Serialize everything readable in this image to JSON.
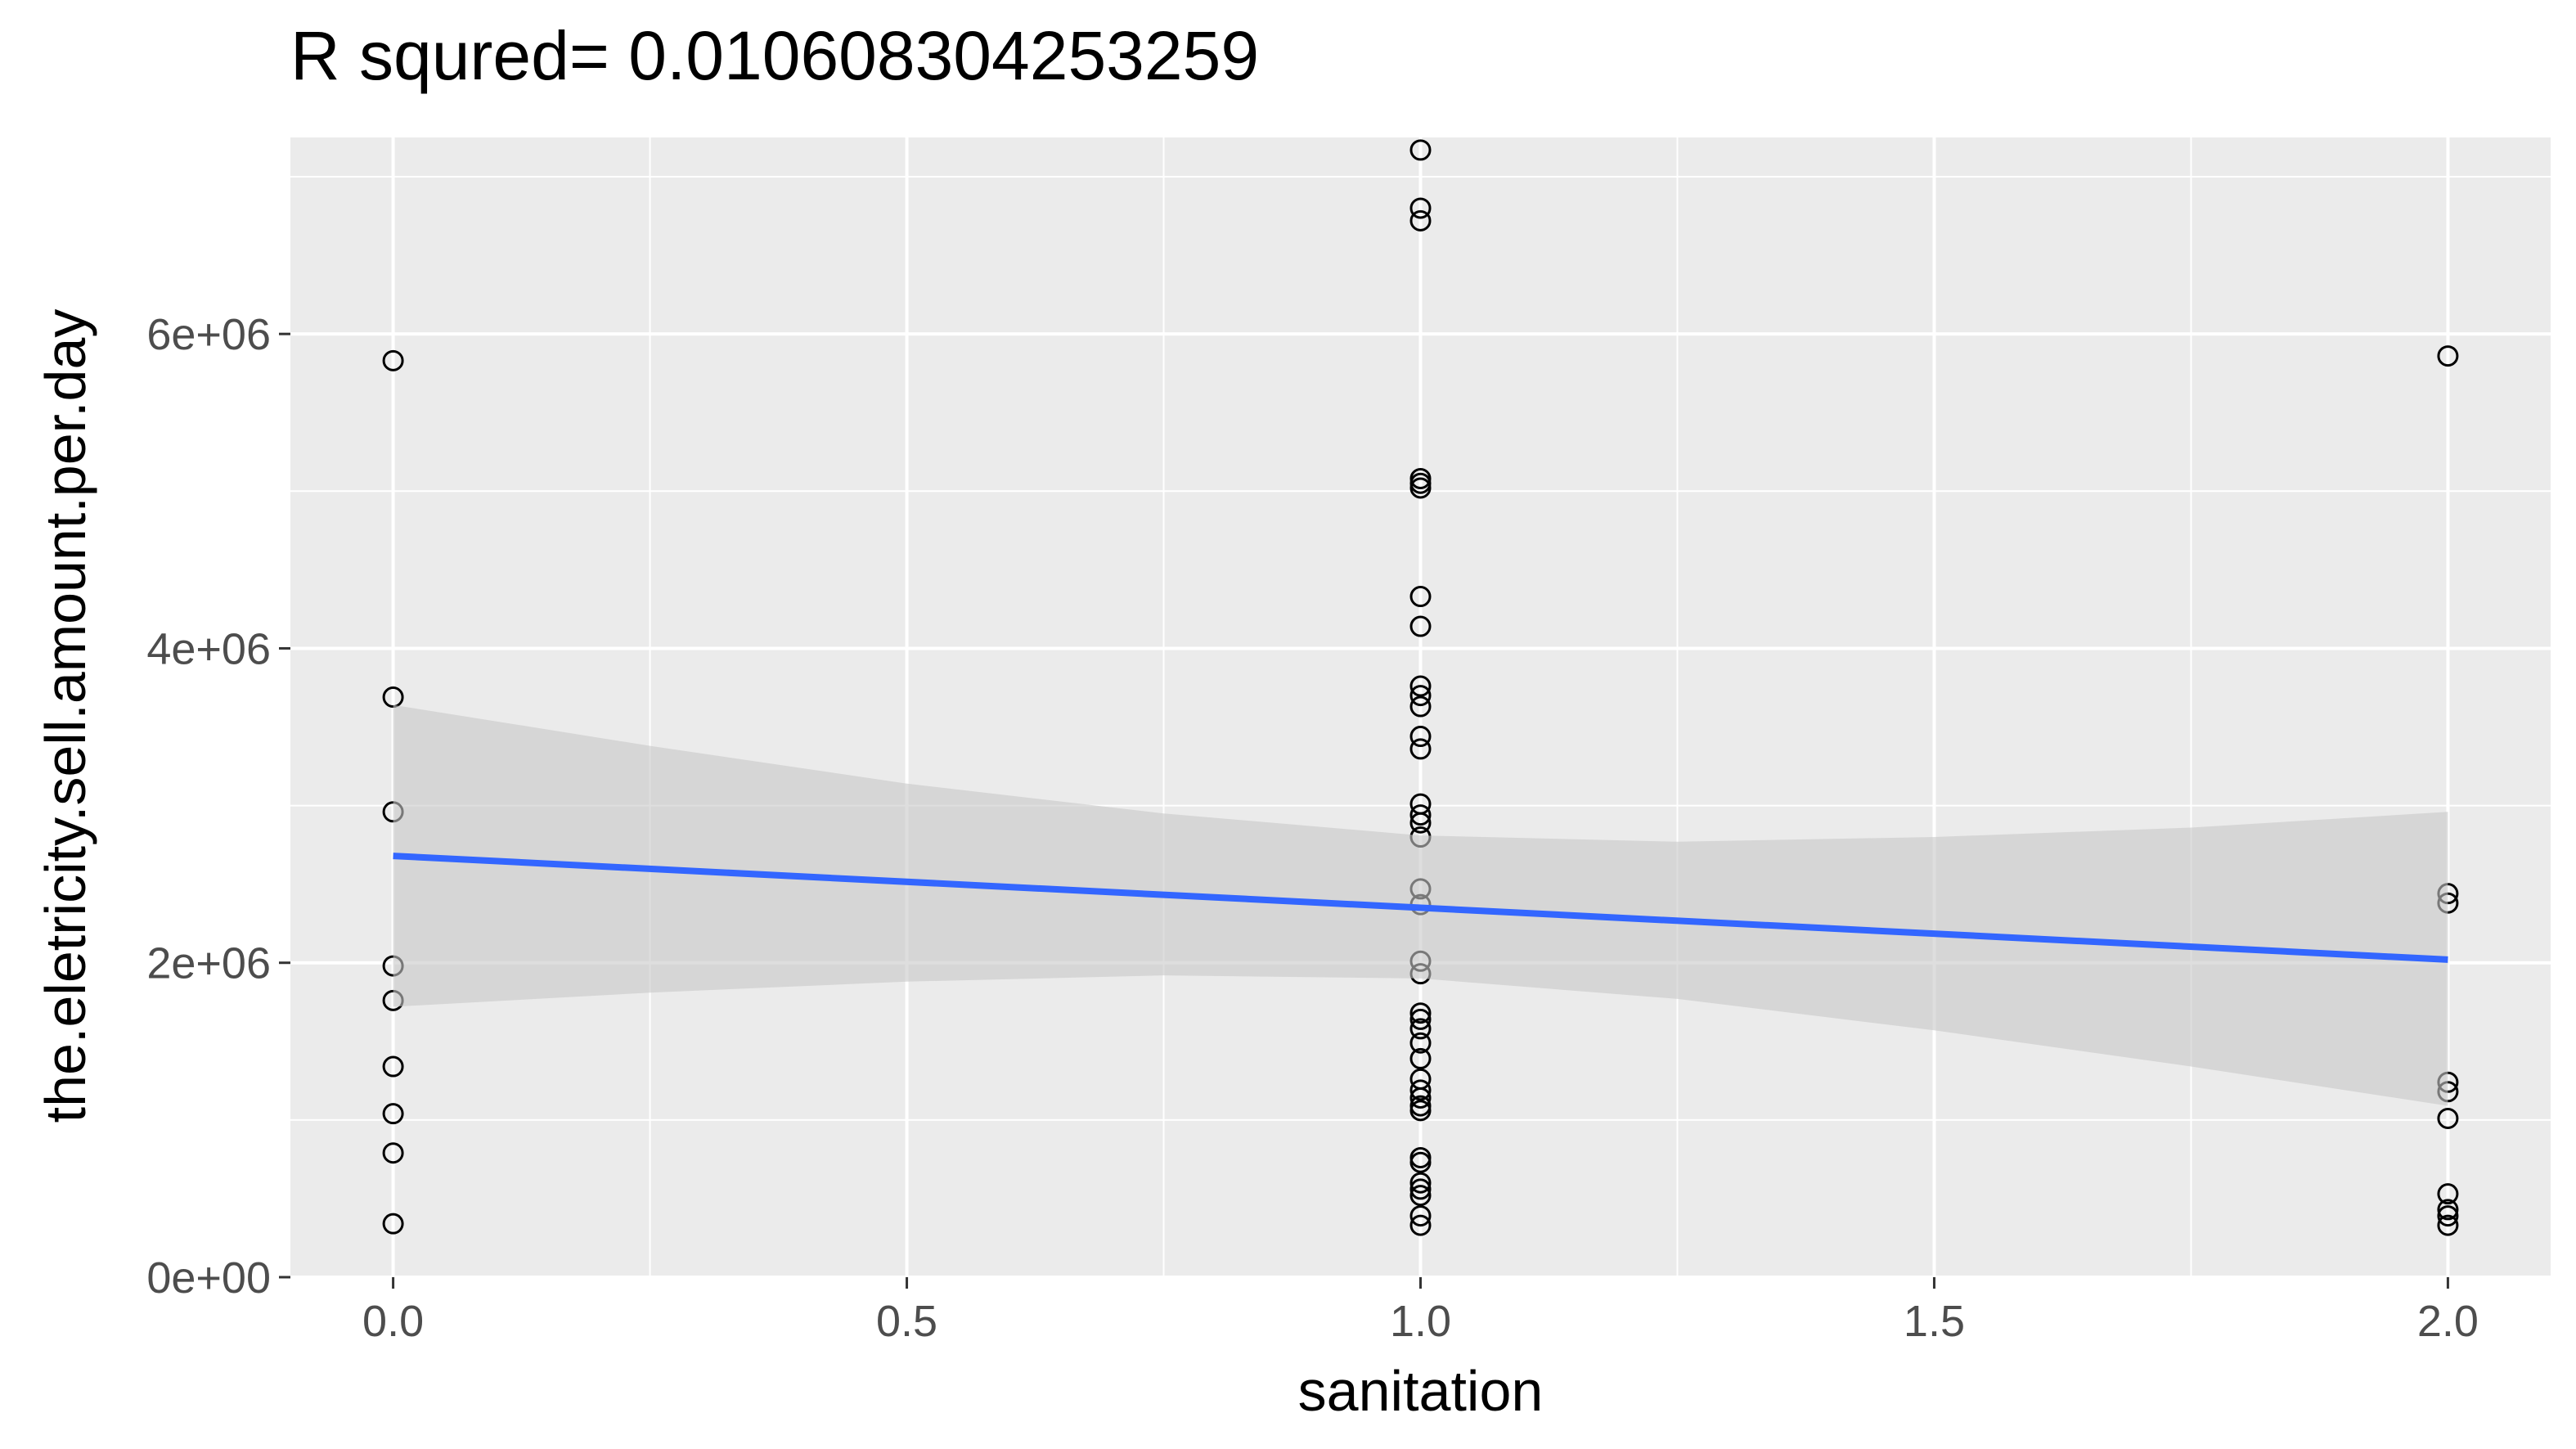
{
  "chart_data": {
    "type": "scatter",
    "title": "R squred= 0.010608304253259",
    "xlabel": "sanitation",
    "ylabel": "the.eletricity.sell.amount.per.day",
    "xlim": [
      -0.1,
      2.1
    ],
    "ylim": [
      0,
      7250000
    ],
    "x_ticks": [
      0,
      0.5,
      1,
      1.5,
      2
    ],
    "x_tick_labels": [
      "0.0",
      "0.5",
      "1.0",
      "1.5",
      "2.0"
    ],
    "y_ticks": [
      0,
      2000000,
      4000000,
      6000000
    ],
    "y_tick_labels": [
      "0e+00",
      "2e+06",
      "4e+06",
      "6e+06"
    ],
    "grid": true,
    "background_color": "#EBEBEB",
    "fit_line_color": "#3366FF",
    "ribbon_color": "#C8C8C8",
    "points": [
      {
        "x": 0,
        "y": 5830000
      },
      {
        "x": 0,
        "y": 3690000
      },
      {
        "x": 0,
        "y": 2960000
      },
      {
        "x": 0,
        "y": 1980000
      },
      {
        "x": 0,
        "y": 1760000
      },
      {
        "x": 0,
        "y": 1340000
      },
      {
        "x": 0,
        "y": 1040000
      },
      {
        "x": 0,
        "y": 790000
      },
      {
        "x": 0,
        "y": 340000
      },
      {
        "x": 1,
        "y": 7170000
      },
      {
        "x": 1,
        "y": 6800000
      },
      {
        "x": 1,
        "y": 6720000
      },
      {
        "x": 1,
        "y": 5080000
      },
      {
        "x": 1,
        "y": 5050000
      },
      {
        "x": 1,
        "y": 5020000
      },
      {
        "x": 1,
        "y": 4330000
      },
      {
        "x": 1,
        "y": 4140000
      },
      {
        "x": 1,
        "y": 3760000
      },
      {
        "x": 1,
        "y": 3700000
      },
      {
        "x": 1,
        "y": 3630000
      },
      {
        "x": 1,
        "y": 3440000
      },
      {
        "x": 1,
        "y": 3360000
      },
      {
        "x": 1,
        "y": 3010000
      },
      {
        "x": 1,
        "y": 2940000
      },
      {
        "x": 1,
        "y": 2890000
      },
      {
        "x": 1,
        "y": 2800000
      },
      {
        "x": 1,
        "y": 2470000
      },
      {
        "x": 1,
        "y": 2370000
      },
      {
        "x": 1,
        "y": 2010000
      },
      {
        "x": 1,
        "y": 1930000
      },
      {
        "x": 1,
        "y": 1680000
      },
      {
        "x": 1,
        "y": 1640000
      },
      {
        "x": 1,
        "y": 1580000
      },
      {
        "x": 1,
        "y": 1490000
      },
      {
        "x": 1,
        "y": 1390000
      },
      {
        "x": 1,
        "y": 1260000
      },
      {
        "x": 1,
        "y": 1190000
      },
      {
        "x": 1,
        "y": 1140000
      },
      {
        "x": 1,
        "y": 1090000
      },
      {
        "x": 1,
        "y": 1060000
      },
      {
        "x": 1,
        "y": 760000
      },
      {
        "x": 1,
        "y": 730000
      },
      {
        "x": 1,
        "y": 600000
      },
      {
        "x": 1,
        "y": 560000
      },
      {
        "x": 1,
        "y": 520000
      },
      {
        "x": 1,
        "y": 390000
      },
      {
        "x": 1,
        "y": 330000
      },
      {
        "x": 2,
        "y": 5860000
      },
      {
        "x": 2,
        "y": 2440000
      },
      {
        "x": 2,
        "y": 2380000
      },
      {
        "x": 2,
        "y": 1240000
      },
      {
        "x": 2,
        "y": 1180000
      },
      {
        "x": 2,
        "y": 1010000
      },
      {
        "x": 2,
        "y": 530000
      },
      {
        "x": 2,
        "y": 430000
      },
      {
        "x": 2,
        "y": 390000
      },
      {
        "x": 2,
        "y": 330000
      }
    ],
    "fit_line": {
      "x": [
        0,
        2
      ],
      "y": [
        2680000,
        2020000
      ]
    },
    "confidence_band": {
      "x": [
        0,
        0.25,
        0.5,
        0.75,
        1,
        1.25,
        1.5,
        1.75,
        2
      ],
      "upper": [
        3640000,
        3380000,
        3140000,
        2950000,
        2810000,
        2770000,
        2800000,
        2860000,
        2960000
      ],
      "lower": [
        1720000,
        1810000,
        1880000,
        1920000,
        1900000,
        1770000,
        1570000,
        1340000,
        1090000
      ]
    }
  }
}
